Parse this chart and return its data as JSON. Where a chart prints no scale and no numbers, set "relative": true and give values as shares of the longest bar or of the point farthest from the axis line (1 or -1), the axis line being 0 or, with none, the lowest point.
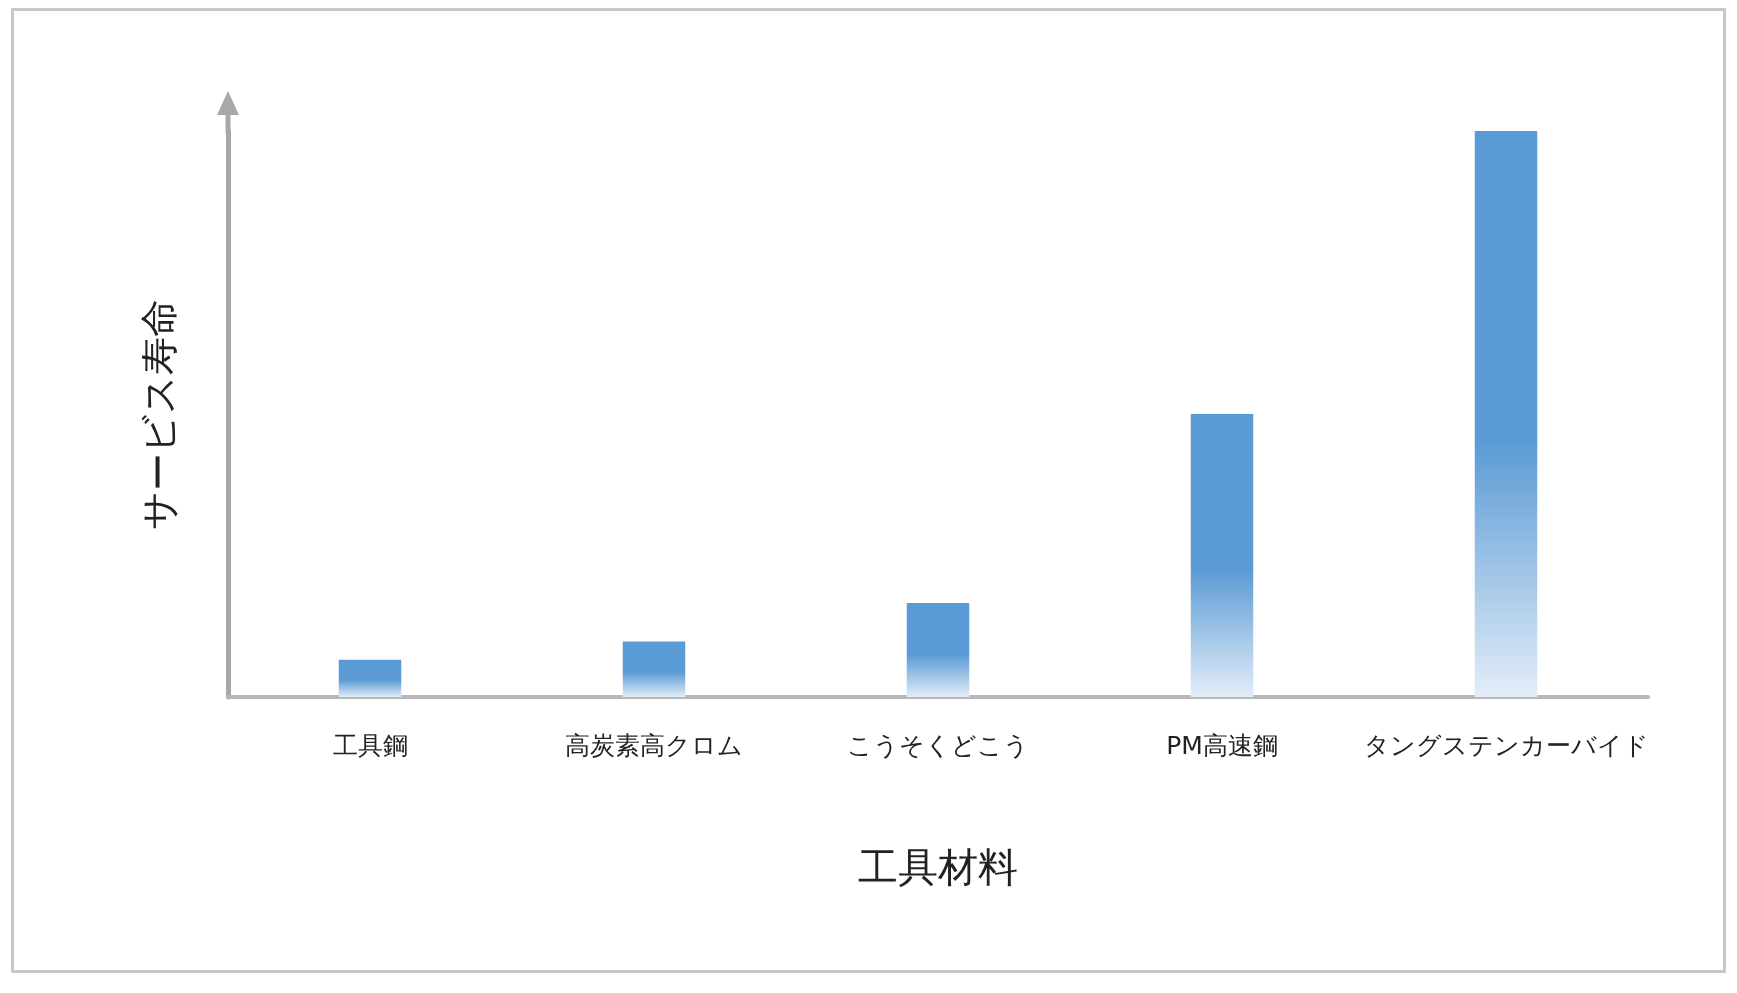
{
  "chart_data": {
    "type": "bar",
    "relative": true,
    "xlabel": "工具材料",
    "ylabel": "サービス寿命",
    "categories": [
      "工具鋼",
      "高炭素高クロム",
      "こうそくどこう",
      "PM高速鋼",
      "タングステンカーバイド"
    ],
    "values": [
      0.066,
      0.098,
      0.166,
      0.5,
      1
    ],
    "color": "#5b9bd5",
    "grid": false
  }
}
